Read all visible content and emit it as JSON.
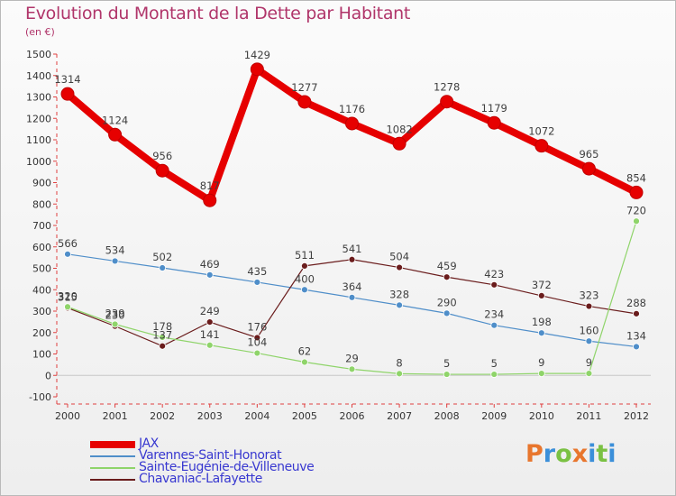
{
  "header": {
    "title": "Evolution du Montant de la Dette par Habitant",
    "unit": "(en €)"
  },
  "brand": {
    "text": "Proxiti",
    "colors": [
      "#e8762d",
      "#3b8fd9",
      "#7ac143",
      "#e8762d",
      "#3b8fd9",
      "#7ac143",
      "#3b8fd9"
    ]
  },
  "chart_data": {
    "type": "line",
    "x": [
      "2000",
      "2001",
      "2002",
      "2003",
      "2004",
      "2005",
      "2006",
      "2007",
      "2008",
      "2009",
      "2010",
      "2011",
      "2012"
    ],
    "ylim": [
      -100,
      1500
    ],
    "yticks": [
      -100,
      0,
      100,
      200,
      300,
      400,
      500,
      600,
      700,
      800,
      900,
      1000,
      1100,
      1200,
      1300,
      1400,
      1500
    ],
    "grid": false,
    "legend_position": "bottom-left",
    "series": [
      {
        "name": "JAX",
        "color": "#e60000",
        "width": "thick",
        "values": [
          1314,
          1124,
          956,
          817,
          1429,
          1277,
          1176,
          1082,
          1278,
          1179,
          1072,
          965,
          854
        ],
        "labels": [
          "1314",
          "1124",
          "956",
          "817",
          "1429",
          "1277",
          "1176",
          "1082",
          "1278",
          "1179",
          "1072",
          "965",
          "854"
        ]
      },
      {
        "name": "Varennes-Saint-Honorat",
        "color": "#4f8ec9",
        "width": "thin",
        "values": [
          566,
          534,
          502,
          469,
          435,
          400,
          364,
          328,
          290,
          234,
          198,
          160,
          134
        ],
        "labels": [
          "566",
          "534",
          "502",
          "469",
          "435",
          "400",
          "364",
          "328",
          "290",
          "234",
          "198",
          "160",
          "134"
        ]
      },
      {
        "name": "Sainte-Eugénie-de-Villeneuve",
        "color": "#8fd46a",
        "width": "thin",
        "values": [
          320,
          239,
          178,
          141,
          104,
          62,
          29,
          8,
          5,
          5,
          9,
          9,
          720
        ],
        "labels": [
          "320",
          "239",
          "178",
          "141",
          "104",
          "62",
          "29",
          "8",
          "5",
          "5",
          "9",
          "9",
          "720"
        ]
      },
      {
        "name": "Chavaniac-Lafayette",
        "color": "#6a1c1c",
        "width": "thin",
        "values": [
          315,
          230,
          137,
          249,
          176,
          511,
          541,
          504,
          459,
          423,
          372,
          323,
          288
        ],
        "labels": [
          "315",
          "230",
          "137",
          "249",
          "176",
          "511",
          "541",
          "504",
          "459",
          "423",
          "372",
          "323",
          "288"
        ]
      }
    ]
  }
}
